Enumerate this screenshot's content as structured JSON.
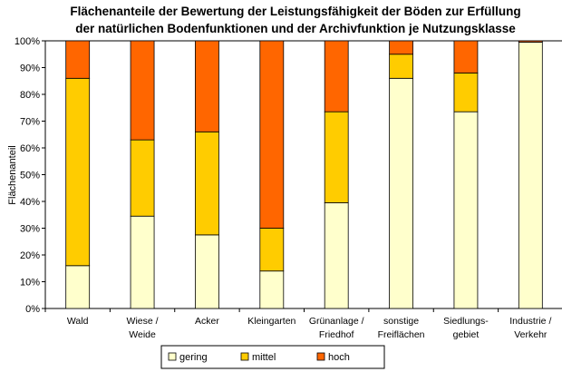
{
  "chart_data": {
    "type": "bar",
    "stacked": true,
    "title": "Flächenanteile der Bewertung der Leistungsfähigkeit der Böden zur Erfüllung der natürlichen Bodenfunktionen und der Archivfunktion je Nutzungsklasse",
    "title_lines": [
      "Flächenanteile der Bewertung der Leistungsfähigkeit der Böden zur Erfüllung",
      "der natürlichen Bodenfunktionen und der Archivfunktion je Nutzungsklasse"
    ],
    "ylabel": "Flächenanteil",
    "xlabel": "",
    "ylim": [
      0,
      100
    ],
    "y_ticks": [
      "0%",
      "10%",
      "20%",
      "30%",
      "40%",
      "50%",
      "60%",
      "70%",
      "80%",
      "90%",
      "100%"
    ],
    "grid": false,
    "legend_position": "bottom",
    "categories": [
      [
        "Wald"
      ],
      [
        "Wiese /",
        "Weide"
      ],
      [
        "Acker"
      ],
      [
        "Kleingarten"
      ],
      [
        "Grünanlage /",
        "Friedhof"
      ],
      [
        "sonstige",
        "Freiflächen"
      ],
      [
        "Siedlungs-",
        "gebiet"
      ],
      [
        "Industrie /",
        "Verkehr"
      ]
    ],
    "series": [
      {
        "name": "gering",
        "color": "#FFFFCC",
        "values": [
          16,
          34.5,
          27.5,
          14,
          39.5,
          86,
          73.5,
          99.5
        ]
      },
      {
        "name": "mittel",
        "color": "#FFCC00",
        "values": [
          70,
          28.5,
          38.5,
          16,
          34,
          9,
          14.5,
          0
        ]
      },
      {
        "name": "hoch",
        "color": "#FF6600",
        "values": [
          14,
          37,
          34,
          70,
          26.5,
          5,
          12,
          0.5
        ]
      }
    ]
  }
}
